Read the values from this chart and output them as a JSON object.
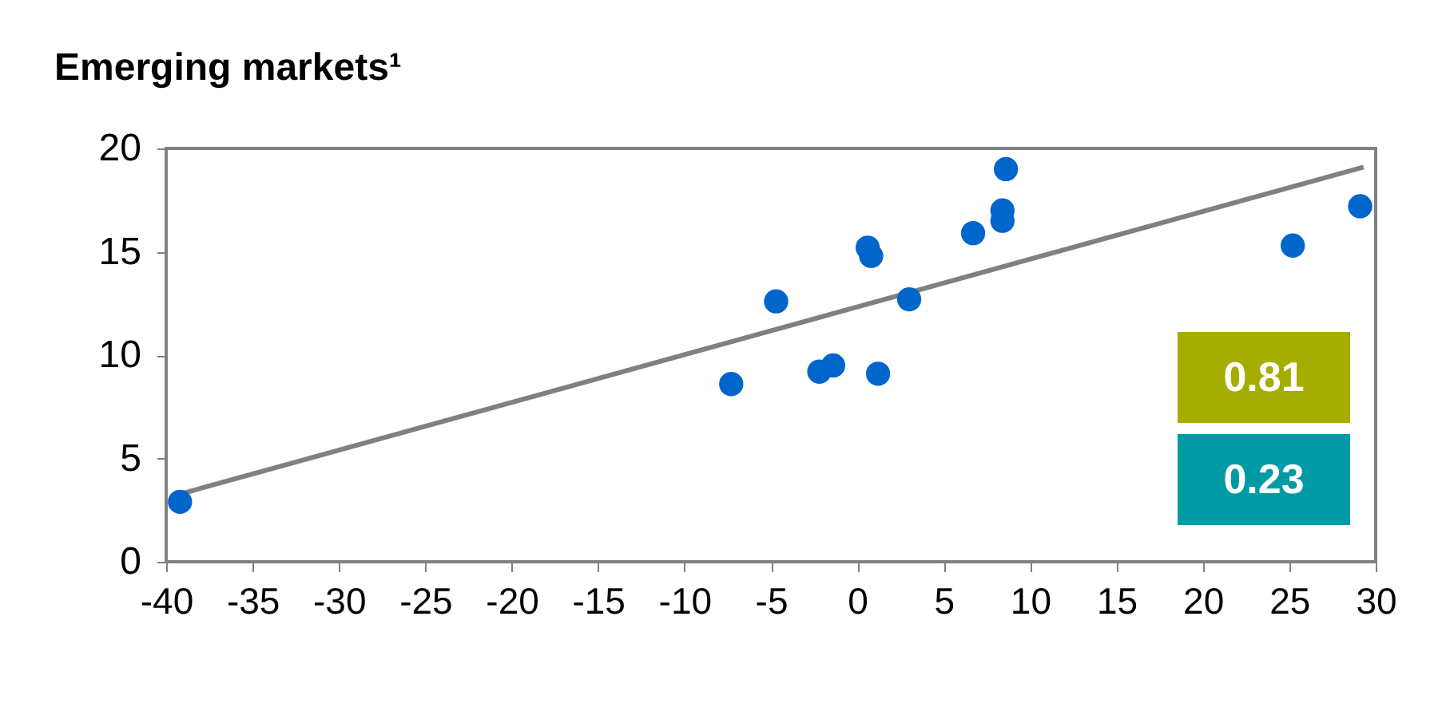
{
  "chart_data": {
    "type": "scatter",
    "title": "Emerging markets¹",
    "series": [
      {
        "type": "scatter",
        "color": "#0066cc",
        "marker": "circle",
        "x": [
          -39.2,
          -7.3,
          -4.7,
          -2.2,
          -1.4,
          0.6,
          0.8,
          1.2,
          3.0,
          6.7,
          8.4,
          8.4,
          8.6,
          25.2,
          29.1
        ],
        "values": [
          2.9,
          8.6,
          12.6,
          9.2,
          9.5,
          15.2,
          14.8,
          9.1,
          12.7,
          15.9,
          17.0,
          16.5,
          19.0,
          15.3,
          17.2
        ]
      },
      {
        "type": "line",
        "color": "#808080",
        "marker": "none",
        "x": [
          -39.1,
          29.3
        ],
        "values": [
          3.3,
          19.1
        ]
      }
    ],
    "annotations": [
      "0.81",
      "0.23"
    ],
    "xlim": [
      -40,
      30
    ],
    "xticks": [
      -40,
      -35,
      -30,
      -25,
      -20,
      -15,
      -10,
      -5,
      0,
      5,
      10,
      15,
      20,
      25,
      30
    ],
    "ylim": [
      0,
      20
    ],
    "yticks": [
      0,
      5,
      10,
      15,
      20
    ],
    "grid": false,
    "legend": false
  }
}
